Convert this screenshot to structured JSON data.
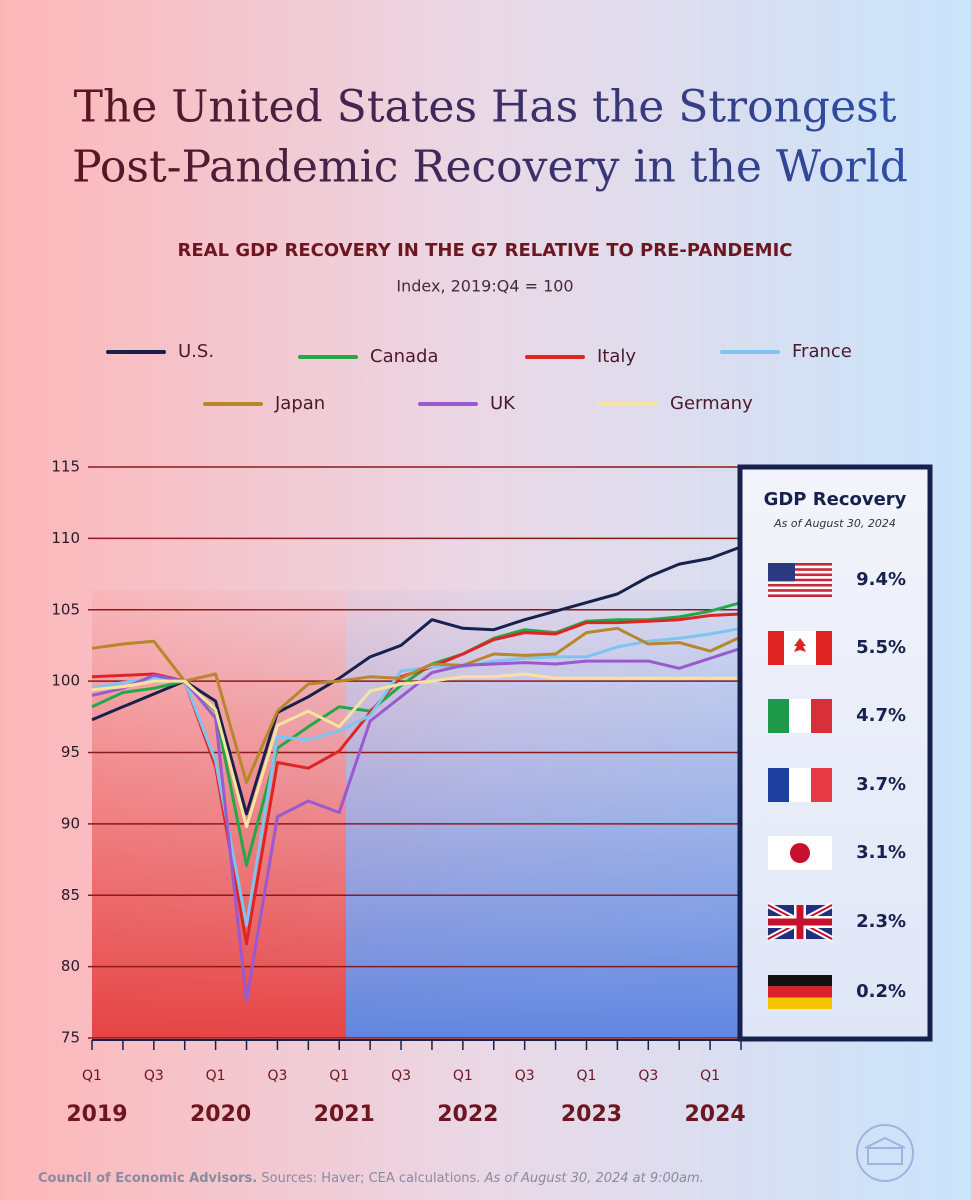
{
  "chart_data": {
    "type": "line",
    "title_lines": [
      "The United States Has the Strongest",
      "Post-Pandemic Recovery in the World"
    ],
    "subtitle": "REAL GDP RECOVERY IN THE G7 RELATIVE TO PRE-PANDEMIC",
    "y_label": "Index, 2019:Q4 = 100",
    "categories": [
      "Q1",
      null,
      "Q3",
      null,
      "Q1",
      null,
      "Q3",
      null,
      "Q1",
      null,
      "Q3",
      null,
      "Q1",
      null,
      "Q3",
      null,
      "Q1",
      null,
      "Q3",
      null,
      "Q1",
      null
    ],
    "year_labels": [
      "2019",
      "2020",
      "2021",
      "2022",
      "2023",
      "2024"
    ],
    "ylim": [
      75,
      115
    ],
    "yticks": [
      75,
      80,
      85,
      90,
      95,
      100,
      105,
      110,
      115
    ],
    "grid": true,
    "series": [
      {
        "name": "U.S.",
        "color": "#16214d",
        "values": [
          97.3,
          98.2,
          99.1,
          100,
          98.6,
          90.7,
          97.8,
          98.9,
          100.2,
          101.7,
          102.5,
          104.3,
          103.7,
          103.6,
          104.3,
          104.9,
          105.5,
          106.1,
          107.3,
          108.2,
          108.6,
          109.4
        ]
      },
      {
        "name": "Canada",
        "color": "#22a846",
        "values": [
          98.2,
          99.2,
          99.5,
          100,
          97.9,
          87.1,
          95.3,
          96.8,
          98.2,
          97.9,
          99.7,
          101.2,
          101.9,
          103.0,
          103.6,
          103.4,
          104.2,
          104.3,
          104.3,
          104.5,
          104.9,
          105.5
        ]
      },
      {
        "name": "Italy",
        "color": "#e02424",
        "values": [
          100.3,
          100.4,
          100.5,
          100,
          94.0,
          81.6,
          94.3,
          93.9,
          95.1,
          97.8,
          100.3,
          101.0,
          101.9,
          102.9,
          103.4,
          103.3,
          104.1,
          104.1,
          104.2,
          104.3,
          104.6,
          104.7
        ]
      },
      {
        "name": "France",
        "color": "#7fc4f0",
        "values": [
          99.5,
          99.9,
          100.2,
          100,
          94.4,
          82.9,
          96.1,
          95.9,
          96.5,
          97.6,
          100.7,
          101.0,
          101.0,
          101.4,
          101.6,
          101.7,
          101.7,
          102.4,
          102.8,
          103.0,
          103.3,
          103.7
        ]
      },
      {
        "name": "Japan",
        "color": "#b8862b",
        "values": [
          102.3,
          102.6,
          102.8,
          100,
          100.5,
          92.9,
          97.9,
          99.8,
          100.0,
          100.3,
          100.2,
          101.2,
          101.1,
          101.9,
          101.8,
          101.9,
          103.4,
          103.7,
          102.6,
          102.7,
          102.1,
          103.1
        ]
      },
      {
        "name": "UK",
        "color": "#9b59d0",
        "values": [
          99.0,
          99.5,
          100.4,
          100,
          97.4,
          77.6,
          90.5,
          91.6,
          90.8,
          97.2,
          98.9,
          100.6,
          101.1,
          101.2,
          101.3,
          101.2,
          101.4,
          101.4,
          101.4,
          100.9,
          101.6,
          102.3
        ]
      },
      {
        "name": "Germany",
        "color": "#f5e3a0",
        "values": [
          99.4,
          99.6,
          100.0,
          100,
          98.0,
          89.8,
          96.9,
          97.9,
          96.8,
          99.3,
          99.8,
          100.0,
          100.3,
          100.3,
          100.5,
          100.2,
          100.2,
          100.2,
          100.2,
          100.2,
          100.2,
          100.2
        ]
      }
    ],
    "recovery_panel": {
      "title": "GDP Recovery",
      "subtitle": "As of August 30, 2024",
      "rows": [
        "9.4%",
        "5.5%",
        "4.7%",
        "3.7%",
        "3.1%",
        "2.3%",
        "0.2%"
      ]
    },
    "footer": {
      "org": "Council of Economic Advisors.",
      "sources": "Sources: Haver; CEA calculations.",
      "asof": "As of August 30, 2024 at 9:00am."
    }
  }
}
